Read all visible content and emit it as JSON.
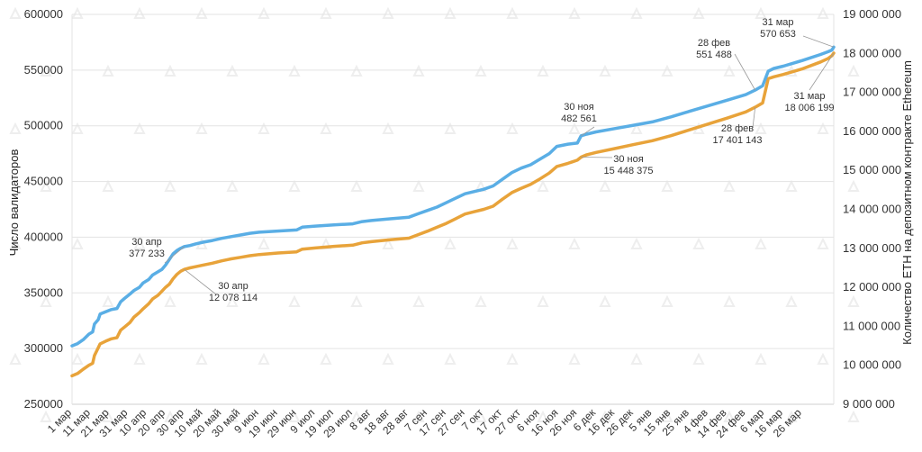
{
  "chart_data": {
    "type": "line",
    "title": "",
    "ylabel": "Число валидаторов",
    "y2label": "Количество ETH на депозитном контракте Ethereum",
    "xlabel": "",
    "ylim": [
      250000,
      600000
    ],
    "y2lim": [
      9000000,
      19000000
    ],
    "y_ticks": [
      "250000",
      "300000",
      "350000",
      "400000",
      "450000",
      "500000",
      "550000",
      "600000"
    ],
    "y2_ticks": [
      "9 000 000",
      "10 000 000",
      "11 000 000",
      "12 000 000",
      "13 000 000",
      "14 000 000",
      "15 000 000",
      "16 000 000",
      "17 000 000",
      "18 000 000",
      "19 000 000"
    ],
    "x_tick_labels": [
      "1 мар",
      "11 мар",
      "21 мар",
      "31 мар",
      "10 апр",
      "20 апр",
      "30 апр",
      "10 май",
      "20 май",
      "30 май",
      "9 июн",
      "19 июн",
      "29 июн",
      "9 июл",
      "19 июл",
      "29 июл",
      "8 авг",
      "18 авг",
      "28 авг",
      "7 сен",
      "17 сен",
      "27 сен",
      "7 окт",
      "17 окт",
      "27 окт",
      "6 ноя",
      "16 ноя",
      "26 ноя",
      "6 дек",
      "16 дек",
      "26 дек",
      "5 янв",
      "15 янв",
      "25 янв",
      "4 фев",
      "14 фев",
      "24 фев",
      "6 мар",
      "16 мар",
      "26 мар"
    ],
    "grid": true,
    "series": [
      {
        "color": "#5aaee5",
        "axis": "left",
        "points": [
          [
            0,
            302500
          ],
          [
            3,
            304500
          ],
          [
            6,
            308000
          ],
          [
            9,
            313000
          ],
          [
            11,
            315000
          ],
          [
            12,
            322000
          ],
          [
            14,
            326000
          ],
          [
            15,
            331000
          ],
          [
            18,
            333000
          ],
          [
            21,
            335000
          ],
          [
            24,
            336000
          ],
          [
            26,
            342000
          ],
          [
            28,
            345000
          ],
          [
            31,
            349000
          ],
          [
            33,
            352000
          ],
          [
            36,
            355000
          ],
          [
            38,
            359000
          ],
          [
            41,
            362000
          ],
          [
            43,
            366000
          ],
          [
            46,
            369000
          ],
          [
            48,
            371000
          ],
          [
            50,
            375000
          ],
          [
            52,
            380000
          ],
          [
            54,
            385000
          ],
          [
            56,
            388000
          ],
          [
            58,
            390000
          ],
          [
            60,
            391500
          ],
          [
            63,
            392500
          ],
          [
            66,
            394000
          ],
          [
            70,
            395500
          ],
          [
            75,
            397000
          ],
          [
            80,
            399000
          ],
          [
            85,
            400500
          ],
          [
            90,
            402000
          ],
          [
            95,
            403500
          ],
          [
            100,
            404500
          ],
          [
            110,
            405500
          ],
          [
            120,
            406500
          ],
          [
            123,
            409000
          ],
          [
            130,
            410000
          ],
          [
            140,
            411000
          ],
          [
            150,
            412000
          ],
          [
            155,
            414000
          ],
          [
            160,
            415000
          ],
          [
            170,
            416500
          ],
          [
            180,
            418000
          ],
          [
            185,
            421000
          ],
          [
            190,
            424000
          ],
          [
            195,
            427000
          ],
          [
            200,
            431000
          ],
          [
            205,
            435000
          ],
          [
            210,
            439000
          ],
          [
            215,
            441000
          ],
          [
            220,
            443000
          ],
          [
            225,
            446000
          ],
          [
            230,
            452000
          ],
          [
            235,
            458000
          ],
          [
            240,
            462000
          ],
          [
            245,
            465000
          ],
          [
            250,
            470000
          ],
          [
            255,
            475000
          ],
          [
            259,
            481500
          ],
          [
            265,
            483500
          ],
          [
            270,
            484500
          ],
          [
            272,
            491000
          ],
          [
            275,
            492500
          ],
          [
            280,
            494500
          ],
          [
            290,
            497500
          ],
          [
            300,
            500500
          ],
          [
            310,
            503500
          ],
          [
            320,
            508000
          ],
          [
            330,
            513000
          ],
          [
            340,
            518000
          ],
          [
            350,
            523000
          ],
          [
            360,
            528000
          ],
          [
            365,
            532000
          ],
          [
            369,
            536000
          ],
          [
            372,
            549000
          ],
          [
            375,
            551500
          ],
          [
            380,
            553500
          ],
          [
            390,
            558500
          ],
          [
            400,
            564000
          ],
          [
            404,
            566500
          ],
          [
            406,
            568000
          ],
          [
            407,
            570653
          ]
        ],
        "annotations": [
          {
            "text": "30 апр",
            "value": "377 233"
          },
          {
            "text": "30 ноя",
            "value": "482 561"
          },
          {
            "text": "28 фев",
            "value": "551 488"
          },
          {
            "text": "31 мар",
            "value": "570 653"
          }
        ]
      },
      {
        "color": "#e8a33a",
        "axis": "right",
        "points": [
          [
            0,
            9730000
          ],
          [
            3,
            9790000
          ],
          [
            6,
            9900000
          ],
          [
            9,
            10000000
          ],
          [
            11,
            10050000
          ],
          [
            12,
            10250000
          ],
          [
            14,
            10450000
          ],
          [
            15,
            10550000
          ],
          [
            18,
            10620000
          ],
          [
            21,
            10680000
          ],
          [
            24,
            10710000
          ],
          [
            26,
            10900000
          ],
          [
            28,
            10980000
          ],
          [
            31,
            11100000
          ],
          [
            33,
            11230000
          ],
          [
            36,
            11350000
          ],
          [
            38,
            11450000
          ],
          [
            41,
            11580000
          ],
          [
            43,
            11700000
          ],
          [
            46,
            11800000
          ],
          [
            48,
            11900000
          ],
          [
            50,
            12000000
          ],
          [
            52,
            12080000
          ],
          [
            54,
            12220000
          ],
          [
            56,
            12330000
          ],
          [
            58,
            12410000
          ],
          [
            60,
            12460000
          ],
          [
            63,
            12500000
          ],
          [
            66,
            12530000
          ],
          [
            70,
            12570000
          ],
          [
            75,
            12620000
          ],
          [
            80,
            12680000
          ],
          [
            85,
            12730000
          ],
          [
            90,
            12770000
          ],
          [
            95,
            12810000
          ],
          [
            100,
            12840000
          ],
          [
            110,
            12880000
          ],
          [
            120,
            12910000
          ],
          [
            123,
            12980000
          ],
          [
            130,
            13010000
          ],
          [
            140,
            13050000
          ],
          [
            150,
            13080000
          ],
          [
            155,
            13140000
          ],
          [
            160,
            13170000
          ],
          [
            170,
            13220000
          ],
          [
            180,
            13260000
          ],
          [
            185,
            13350000
          ],
          [
            190,
            13440000
          ],
          [
            195,
            13540000
          ],
          [
            200,
            13640000
          ],
          [
            205,
            13760000
          ],
          [
            210,
            13880000
          ],
          [
            215,
            13940000
          ],
          [
            220,
            14000000
          ],
          [
            225,
            14080000
          ],
          [
            230,
            14260000
          ],
          [
            235,
            14430000
          ],
          [
            240,
            14540000
          ],
          [
            245,
            14640000
          ],
          [
            250,
            14780000
          ],
          [
            255,
            14930000
          ],
          [
            259,
            15100000
          ],
          [
            265,
            15180000
          ],
          [
            270,
            15260000
          ],
          [
            272,
            15340000
          ],
          [
            275,
            15400000
          ],
          [
            280,
            15460000
          ],
          [
            290,
            15560000
          ],
          [
            300,
            15660000
          ],
          [
            310,
            15760000
          ],
          [
            320,
            15890000
          ],
          [
            330,
            16040000
          ],
          [
            340,
            16190000
          ],
          [
            350,
            16340000
          ],
          [
            360,
            16500000
          ],
          [
            365,
            16620000
          ],
          [
            369,
            16730000
          ],
          [
            372,
            17350000
          ],
          [
            375,
            17400000
          ],
          [
            380,
            17460000
          ],
          [
            390,
            17600000
          ],
          [
            400,
            17780000
          ],
          [
            404,
            17870000
          ],
          [
            406,
            17940000
          ],
          [
            407,
            18006199
          ]
        ],
        "annotations": [
          {
            "text": "30 апр",
            "value": "12 078 114"
          },
          {
            "text": "30 ноя",
            "value": "15 448 375"
          },
          {
            "text": "28 фев",
            "value": "17 401 143"
          },
          {
            "text": "31 мар",
            "value": "18 006 199"
          }
        ]
      }
    ]
  }
}
